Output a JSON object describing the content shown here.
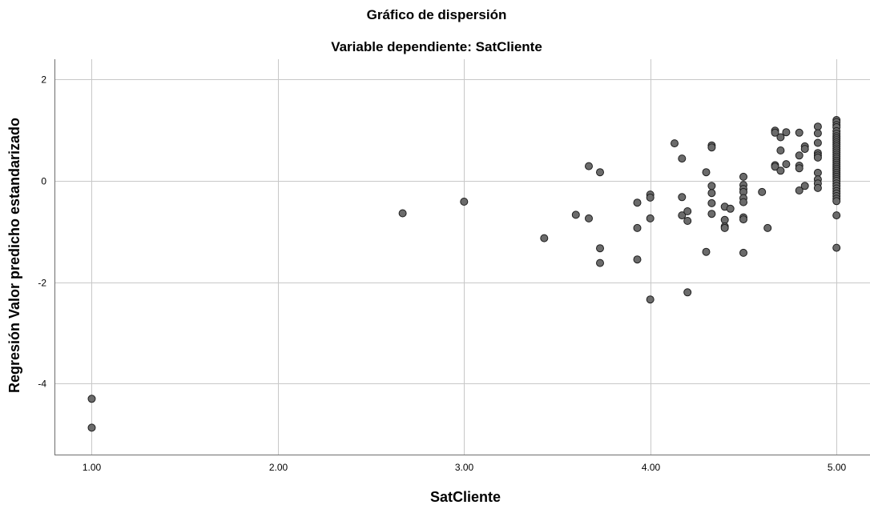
{
  "chart_data": {
    "type": "scatter",
    "title": "Gráfico de dispersión",
    "subtitle": "Variable dependiente: SatCliente",
    "xlabel": "SatCliente",
    "ylabel": "Regresión Valor predicho estandarizado",
    "xlim": [
      0.8,
      5.18
    ],
    "ylim": [
      -5.4,
      2.4
    ],
    "xticks": [
      1,
      2,
      3,
      4,
      5
    ],
    "xtick_labels": [
      "1.00",
      "2.00",
      "3.00",
      "4.00",
      "5.00"
    ],
    "yticks": [
      2,
      0,
      -2,
      -4
    ],
    "ytick_labels": [
      "2",
      "0",
      "-2",
      "-4"
    ],
    "grid": true,
    "legend": "none",
    "colors": {
      "marker_fill": "#6b6b6b",
      "marker_edge": "#1e1e1e",
      "grid": "#c8c8c8"
    },
    "points": [
      [
        1.0,
        -4.3
      ],
      [
        1.0,
        -4.87
      ],
      [
        2.67,
        -0.64
      ],
      [
        3.0,
        -0.41
      ],
      [
        3.43,
        -1.13
      ],
      [
        3.6,
        -0.67
      ],
      [
        3.67,
        0.29
      ],
      [
        3.67,
        -0.74
      ],
      [
        3.73,
        0.17
      ],
      [
        3.73,
        -1.33
      ],
      [
        3.73,
        -1.62
      ],
      [
        3.93,
        -0.43
      ],
      [
        3.93,
        -0.93
      ],
      [
        3.93,
        -1.55
      ],
      [
        4.0,
        -0.27
      ],
      [
        4.0,
        -0.33
      ],
      [
        4.0,
        -0.74
      ],
      [
        4.0,
        -2.34
      ],
      [
        4.13,
        0.74
      ],
      [
        4.17,
        0.44
      ],
      [
        4.17,
        -0.32
      ],
      [
        4.17,
        -0.68
      ],
      [
        4.2,
        -0.6
      ],
      [
        4.2,
        -0.79
      ],
      [
        4.2,
        -2.2
      ],
      [
        4.3,
        0.17
      ],
      [
        4.3,
        -1.4
      ],
      [
        4.33,
        0.7
      ],
      [
        4.33,
        0.66
      ],
      [
        4.33,
        -0.1
      ],
      [
        4.33,
        -0.24
      ],
      [
        4.33,
        -0.44
      ],
      [
        4.33,
        -0.65
      ],
      [
        4.4,
        -0.51
      ],
      [
        4.4,
        -0.77
      ],
      [
        4.4,
        -0.9
      ],
      [
        4.4,
        -0.93
      ],
      [
        4.43,
        -0.55
      ],
      [
        4.5,
        0.08
      ],
      [
        4.5,
        -0.08
      ],
      [
        4.5,
        -0.16
      ],
      [
        4.5,
        -0.22
      ],
      [
        4.5,
        -0.34
      ],
      [
        4.5,
        -0.42
      ],
      [
        4.5,
        -0.72
      ],
      [
        4.5,
        -0.76
      ],
      [
        4.5,
        -1.42
      ],
      [
        4.6,
        -0.22
      ],
      [
        4.63,
        -0.93
      ],
      [
        4.67,
        0.99
      ],
      [
        4.67,
        0.95
      ],
      [
        4.67,
        0.31
      ],
      [
        4.67,
        0.28
      ],
      [
        4.7,
        0.86
      ],
      [
        4.7,
        0.6
      ],
      [
        4.7,
        0.2
      ],
      [
        4.73,
        0.96
      ],
      [
        4.73,
        0.33
      ],
      [
        4.8,
        0.95
      ],
      [
        4.8,
        0.5
      ],
      [
        4.8,
        0.3
      ],
      [
        4.8,
        0.25
      ],
      [
        4.8,
        -0.19
      ],
      [
        4.83,
        0.68
      ],
      [
        4.83,
        0.63
      ],
      [
        4.83,
        -0.1
      ],
      [
        4.9,
        1.07
      ],
      [
        4.9,
        0.94
      ],
      [
        4.9,
        0.75
      ],
      [
        4.9,
        0.55
      ],
      [
        4.9,
        0.5
      ],
      [
        4.9,
        0.46
      ],
      [
        4.9,
        0.16
      ],
      [
        4.9,
        0.03
      ],
      [
        4.9,
        -0.05
      ],
      [
        4.9,
        -0.14
      ],
      [
        5.0,
        1.2
      ],
      [
        5.0,
        1.16
      ],
      [
        5.0,
        1.1
      ],
      [
        5.0,
        1.06
      ],
      [
        5.0,
        0.98
      ],
      [
        5.0,
        0.93
      ],
      [
        5.0,
        0.88
      ],
      [
        5.0,
        0.84
      ],
      [
        5.0,
        0.8
      ],
      [
        5.0,
        0.76
      ],
      [
        5.0,
        0.72
      ],
      [
        5.0,
        0.68
      ],
      [
        5.0,
        0.64
      ],
      [
        5.0,
        0.6
      ],
      [
        5.0,
        0.56
      ],
      [
        5.0,
        0.52
      ],
      [
        5.0,
        0.48
      ],
      [
        5.0,
        0.44
      ],
      [
        5.0,
        0.4
      ],
      [
        5.0,
        0.36
      ],
      [
        5.0,
        0.32
      ],
      [
        5.0,
        0.28
      ],
      [
        5.0,
        0.24
      ],
      [
        5.0,
        0.2
      ],
      [
        5.0,
        0.16
      ],
      [
        5.0,
        0.12
      ],
      [
        5.0,
        0.08
      ],
      [
        5.0,
        0.04
      ],
      [
        5.0,
        0.0
      ],
      [
        5.0,
        -0.05
      ],
      [
        5.0,
        -0.1
      ],
      [
        5.0,
        -0.15
      ],
      [
        5.0,
        -0.2
      ],
      [
        5.0,
        -0.25
      ],
      [
        5.0,
        -0.3
      ],
      [
        5.0,
        -0.35
      ],
      [
        5.0,
        -0.4
      ],
      [
        5.0,
        -0.68
      ],
      [
        5.0,
        -1.32
      ]
    ]
  }
}
